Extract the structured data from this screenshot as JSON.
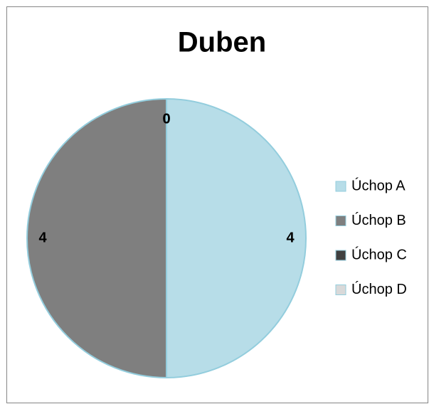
{
  "chart_data": {
    "type": "pie",
    "title": "Duben",
    "categories": [
      "Úchop A",
      "Úchop B",
      "Úchop C",
      "Úchop D"
    ],
    "values": [
      4,
      4,
      0,
      0
    ],
    "colors": [
      "#b7dde8",
      "#7f7f7f",
      "#404040",
      "#d9d9d9"
    ],
    "legend": "right"
  }
}
